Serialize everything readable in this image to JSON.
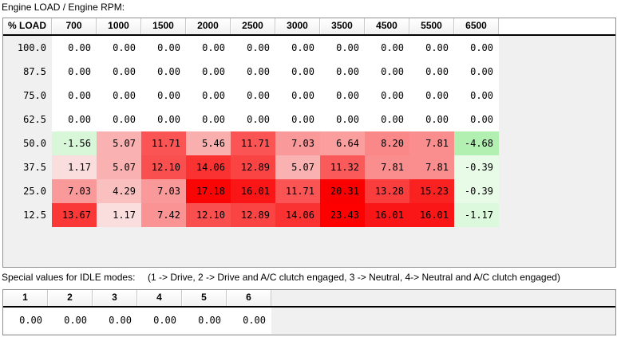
{
  "window": {
    "title": "Engine LOAD / Engine RPM:"
  },
  "map_table": {
    "corner_header": "% LOAD",
    "rpm_headers": [
      "700",
      "1000",
      "1500",
      "2000",
      "2500",
      "3000",
      "3500",
      "4500",
      "5500",
      "6500"
    ],
    "rows": [
      {
        "load": "100.0",
        "values": [
          "0.00",
          "0.00",
          "0.00",
          "0.00",
          "0.00",
          "0.00",
          "0.00",
          "0.00",
          "0.00",
          "0.00"
        ],
        "colors": [
          "#ffffff",
          "#ffffff",
          "#ffffff",
          "#ffffff",
          "#ffffff",
          "#ffffff",
          "#ffffff",
          "#ffffff",
          "#ffffff",
          "#ffffff"
        ]
      },
      {
        "load": "87.5",
        "values": [
          "0.00",
          "0.00",
          "0.00",
          "0.00",
          "0.00",
          "0.00",
          "0.00",
          "0.00",
          "0.00",
          "0.00"
        ],
        "colors": [
          "#ffffff",
          "#ffffff",
          "#ffffff",
          "#ffffff",
          "#ffffff",
          "#ffffff",
          "#ffffff",
          "#ffffff",
          "#ffffff",
          "#ffffff"
        ]
      },
      {
        "load": "75.0",
        "values": [
          "0.00",
          "0.00",
          "0.00",
          "0.00",
          "0.00",
          "0.00",
          "0.00",
          "0.00",
          "0.00",
          "0.00"
        ],
        "colors": [
          "#ffffff",
          "#ffffff",
          "#ffffff",
          "#ffffff",
          "#ffffff",
          "#ffffff",
          "#ffffff",
          "#ffffff",
          "#ffffff",
          "#ffffff"
        ]
      },
      {
        "load": "62.5",
        "values": [
          "0.00",
          "0.00",
          "0.00",
          "0.00",
          "0.00",
          "0.00",
          "0.00",
          "0.00",
          "0.00",
          "0.00"
        ],
        "colors": [
          "#ffffff",
          "#ffffff",
          "#ffffff",
          "#ffffff",
          "#ffffff",
          "#ffffff",
          "#ffffff",
          "#ffffff",
          "#ffffff",
          "#ffffff"
        ]
      },
      {
        "load": "50.0",
        "values": [
          "-1.56",
          "5.07",
          "11.71",
          "5.46",
          "11.71",
          "7.03",
          "6.64",
          "8.20",
          "7.81",
          "-4.68"
        ],
        "colors": [
          "#d8f7d8",
          "#fab1b1",
          "#fa5454",
          "#faafaf",
          "#fa5454",
          "#fa9999",
          "#fa9e9e",
          "#fa8888",
          "#fa8d8d",
          "#b2f0b2"
        ]
      },
      {
        "load": "37.5",
        "values": [
          "1.17",
          "5.07",
          "12.10",
          "14.06",
          "12.89",
          "5.07",
          "11.32",
          "7.81",
          "7.81",
          "-0.39"
        ],
        "colors": [
          "#fadede",
          "#fab1b1",
          "#fa4f4f",
          "#fa3232",
          "#fa4343",
          "#fab1b1",
          "#fa5a5a",
          "#fa8d8d",
          "#fa8d8d",
          "#e7fbe7"
        ]
      },
      {
        "load": "25.0",
        "values": [
          "7.03",
          "4.29",
          "7.03",
          "17.18",
          "16.01",
          "11.71",
          "20.31",
          "13.28",
          "15.23",
          "-0.39"
        ],
        "colors": [
          "#fa9999",
          "#fac0c0",
          "#fa9999",
          "#fa0505",
          "#fa1616",
          "#fa5454",
          "#fa0000",
          "#fa3d3d",
          "#fa2121",
          "#e7fbe7"
        ]
      },
      {
        "load": "12.5",
        "values": [
          "13.67",
          "1.17",
          "7.42",
          "12.10",
          "12.89",
          "14.06",
          "23.43",
          "16.01",
          "16.01",
          "-1.17"
        ],
        "colors": [
          "#fa3838",
          "#fadede",
          "#fa9393",
          "#fa4f4f",
          "#fa4343",
          "#fa3232",
          "#ff0000",
          "#fa1616",
          "#fa1616",
          "#ddf9dd"
        ]
      }
    ]
  },
  "idle_table": {
    "label": "Special values for IDLE modes:",
    "legend": "(1 -> Drive, 2 -> Drive and A/C clutch engaged, 3 -> Neutral, 4-> Neutral and A/C clutch engaged)",
    "headers": [
      "1",
      "2",
      "3",
      "4",
      "5",
      "6"
    ],
    "values": [
      "0.00",
      "0.00",
      "0.00",
      "0.00",
      "0.00",
      "0.00"
    ]
  },
  "colors": {
    "grid_filler": "#f0f0f0",
    "load_column_bg": "#f0f0f0",
    "control_border": "#909090",
    "header_underline": "#000000",
    "zero_cell_bg": "#ffffff",
    "max_positive_cell": "#ff0000",
    "max_negative_cell": "#b2f0b2"
  }
}
